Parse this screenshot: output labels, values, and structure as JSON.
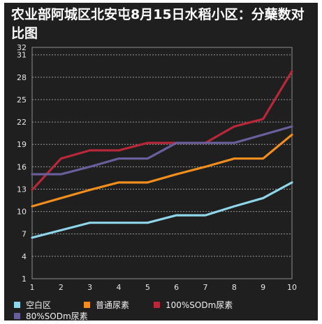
{
  "chart_data": {
    "type": "line",
    "title": "农业部阿城区北安屯8月15日水稻小区：分蘖数对比图",
    "xlabel": "",
    "ylabel": "",
    "x": [
      1,
      2,
      3,
      4,
      5,
      6,
      7,
      8,
      9,
      10
    ],
    "x_tick_labels": [
      "1",
      "2",
      "3",
      "4",
      "5",
      "6",
      "7",
      "8",
      "9",
      "10"
    ],
    "y_tick_labels": [
      "1",
      "4",
      "7",
      "10",
      "13",
      "16",
      "19",
      "22",
      "25",
      "28",
      "31",
      "32"
    ],
    "ylim": [
      1,
      32
    ],
    "grid": true,
    "legend_position": "bottom",
    "background": "#1f1f1f",
    "series": [
      {
        "name": "空白区",
        "color": "#8fd6ea",
        "values": [
          6.5,
          7.5,
          8.5,
          8.5,
          8.5,
          9.5,
          9.5,
          10.7,
          11.8,
          13.9
        ]
      },
      {
        "name": "普通尿素",
        "color": "#f28e1e",
        "values": [
          10.7,
          11.8,
          12.9,
          13.9,
          13.9,
          15.0,
          16.0,
          17.1,
          17.1,
          20.3
        ]
      },
      {
        "name": "100%SODm尿素",
        "color": "#b8283a",
        "values": [
          12.9,
          17.1,
          18.2,
          18.2,
          19.2,
          19.2,
          19.2,
          21.4,
          22.4,
          28.8
        ]
      },
      {
        "name": "80%SODm尿素",
        "color": "#6a5f9c",
        "values": [
          15.0,
          15.0,
          16.0,
          17.1,
          17.1,
          19.2,
          19.2,
          19.2,
          20.3,
          21.4
        ]
      }
    ]
  }
}
